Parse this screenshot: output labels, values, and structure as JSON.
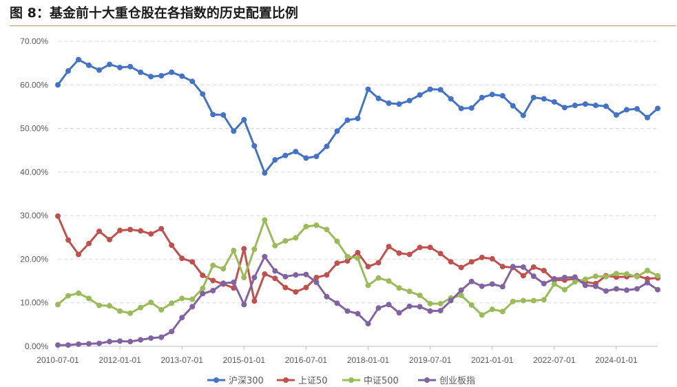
{
  "title": "图 8：基金前十大重仓股在各指数的历史配置比例",
  "chart_data": {
    "type": "line",
    "title": "",
    "xlabel": "",
    "ylabel": "",
    "ylim": [
      0,
      70
    ],
    "y_tick_values": [
      0,
      10,
      20,
      30,
      40,
      50,
      60,
      70
    ],
    "y_tick_labels": [
      "0.00%",
      "10.00%",
      "20.00%",
      "30.00%",
      "40.00%",
      "50.00%",
      "60.00%",
      "70.00%"
    ],
    "x_tick_labels": [
      "2010-07-01",
      "2012-01-01",
      "2013-07-01",
      "2015-01-01",
      "2016-07-01",
      "2018-01-01",
      "2019-07-01",
      "2021-01-01",
      "2022-07-01",
      "2024-01-01"
    ],
    "x_tick_indices": [
      0,
      6,
      12,
      18,
      24,
      30,
      36,
      42,
      48,
      54
    ],
    "grid": true,
    "legend_position": "bottom",
    "series": [
      {
        "name": "沪深300",
        "color": "#4472c4",
        "values": [
          60.0,
          63.2,
          65.8,
          64.5,
          63.4,
          64.7,
          64.0,
          64.2,
          62.9,
          61.9,
          62.1,
          62.9,
          62.0,
          60.8,
          57.9,
          53.2,
          53.1,
          49.4,
          52.0,
          46.0,
          39.8,
          42.8,
          43.8,
          44.7,
          43.2,
          43.6,
          45.9,
          49.4,
          51.9,
          52.3,
          59.0,
          56.9,
          55.8,
          55.6,
          56.4,
          57.7,
          59.0,
          58.9,
          56.8,
          54.6,
          54.7,
          57.1,
          57.8,
          57.5,
          55.2,
          53.0,
          57.1,
          56.8,
          56.1,
          54.8,
          55.3,
          55.6,
          55.3,
          55.1,
          53.1,
          54.3,
          54.5,
          52.5,
          54.6
        ]
      },
      {
        "name": "上证50",
        "color": "#c0504d",
        "values": [
          29.9,
          24.4,
          21.1,
          23.6,
          26.4,
          24.5,
          26.6,
          26.8,
          26.5,
          25.8,
          27.0,
          23.2,
          20.2,
          19.4,
          16.3,
          15.1,
          14.3,
          13.4,
          22.4,
          10.4,
          16.6,
          15.6,
          13.5,
          12.5,
          13.5,
          15.8,
          16.4,
          19.1,
          19.6,
          21.5,
          18.3,
          19.2,
          22.9,
          21.4,
          21.1,
          22.7,
          22.7,
          21.3,
          19.4,
          18.1,
          19.4,
          20.4,
          20.1,
          18.3,
          18.1,
          16.2,
          18.2,
          17.4,
          15.2,
          15.2,
          15.5,
          14.8,
          14.4,
          16.2,
          15.9,
          16.0,
          16.2,
          15.5,
          15.7
        ]
      },
      {
        "name": "中证500",
        "color": "#9bbb59",
        "values": [
          9.6,
          11.6,
          12.2,
          11.0,
          9.4,
          9.3,
          8.1,
          7.6,
          8.9,
          10.1,
          8.4,
          9.9,
          11.0,
          10.8,
          13.3,
          18.6,
          17.8,
          22.0,
          15.8,
          22.3,
          29.0,
          23.1,
          24.2,
          24.9,
          27.5,
          27.8,
          26.8,
          24.1,
          20.6,
          20.2,
          14.0,
          15.7,
          15.0,
          13.4,
          12.6,
          11.7,
          9.8,
          9.8,
          11.1,
          11.7,
          9.5,
          7.2,
          8.5,
          8.0,
          10.3,
          10.5,
          10.5,
          10.7,
          14.3,
          13.0,
          14.8,
          15.4,
          16.1,
          16.0,
          16.7,
          16.6,
          16.0,
          17.4,
          16.2
        ]
      },
      {
        "name": "创业板指",
        "color": "#8064a2",
        "values": [
          0.3,
          0.3,
          0.5,
          0.6,
          0.7,
          1.1,
          1.2,
          1.1,
          1.5,
          1.9,
          2.1,
          3.4,
          6.6,
          9.1,
          12.1,
          12.8,
          14.5,
          14.7,
          9.6,
          15.8,
          20.6,
          17.3,
          16.0,
          16.4,
          16.5,
          14.7,
          11.4,
          9.9,
          8.1,
          7.5,
          5.2,
          8.8,
          9.6,
          7.7,
          9.2,
          9.1,
          8.1,
          8.2,
          10.5,
          12.9,
          14.9,
          13.8,
          14.3,
          13.7,
          18.3,
          18.2,
          16.1,
          14.4,
          15.5,
          15.8,
          15.9,
          14.0,
          13.8,
          12.7,
          13.2,
          12.9,
          13.2,
          14.6,
          13.0
        ]
      }
    ]
  }
}
